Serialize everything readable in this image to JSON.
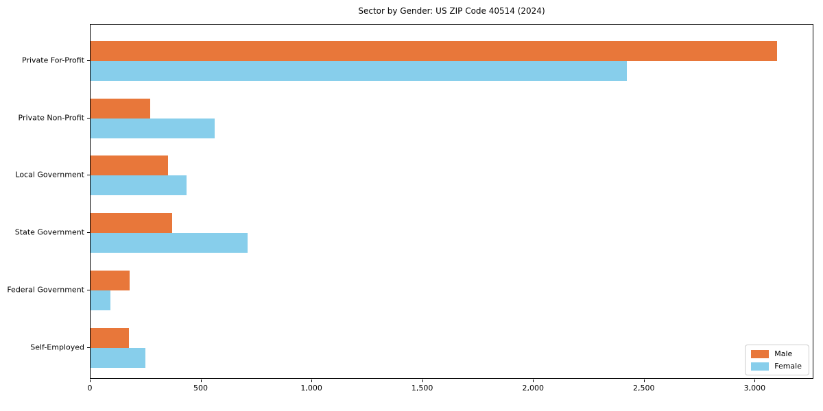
{
  "chart_data": {
    "type": "bar",
    "orientation": "horizontal",
    "title": "Sector by Gender: US ZIP Code 40514 (2024)",
    "categories": [
      "Private For-Profit",
      "Private Non-Profit",
      "Local Government",
      "State Government",
      "Federal Government",
      "Self-Employed"
    ],
    "series": [
      {
        "name": "Male",
        "color": "#e8773a",
        "values": [
          3105,
          270,
          350,
          370,
          178,
          175
        ]
      },
      {
        "name": "Female",
        "color": "#87ceeb",
        "values": [
          2425,
          560,
          435,
          710,
          90,
          248
        ]
      }
    ],
    "xlabel": "",
    "ylabel": "",
    "xlim": [
      0,
      3265
    ],
    "xticks": {
      "values": [
        0,
        500,
        1000,
        1500,
        2000,
        2500,
        3000
      ],
      "labels": [
        "0",
        "500",
        "1,000",
        "1,500",
        "2,000",
        "2,500",
        "3,000"
      ]
    },
    "legend_position": "lower right",
    "grid": false
  }
}
